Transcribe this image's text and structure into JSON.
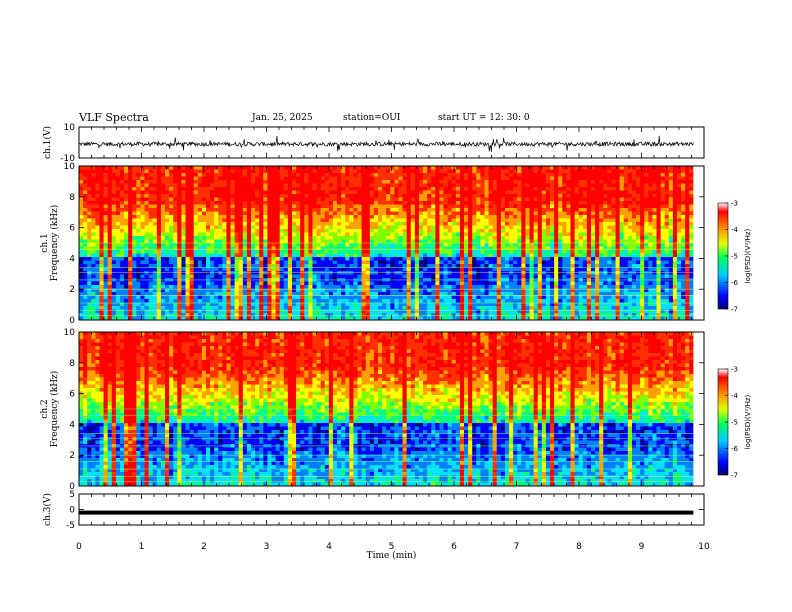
{
  "header": {
    "title": "VLF Spectra",
    "date": "Jan. 25, 2025",
    "station": "station=OUI",
    "start": "start  UT =   12: 30: 0"
  },
  "chart_data": [
    {
      "type": "line",
      "panel": "ch1-waveform",
      "ylabel": "ch.1(V)",
      "ylim": [
        -10,
        10
      ],
      "yticks": [
        "10",
        "-10"
      ],
      "xlim": [
        0,
        10
      ]
    },
    {
      "type": "heatmap",
      "panel": "ch1-spectrogram",
      "ylabel_line1": "ch.1",
      "ylabel_line2": "Frequency (kHz)",
      "ylim": [
        0,
        10
      ],
      "yticks": [
        "0",
        "2",
        "4",
        "6",
        "8",
        "10"
      ],
      "xlim": [
        0,
        10
      ],
      "colorbar": {
        "label": "log(PSD)(V²/Hz)",
        "range": [
          -7,
          -3
        ],
        "ticks": [
          "-3",
          "-4",
          "-5",
          "-6",
          "-7"
        ]
      }
    },
    {
      "type": "heatmap",
      "panel": "ch2-spectrogram",
      "ylabel_line1": "ch.2",
      "ylabel_line2": "Frequency (kHz)",
      "ylim": [
        0,
        10
      ],
      "yticks": [
        "0",
        "2",
        "4",
        "6",
        "8",
        "10"
      ],
      "xlim": [
        0,
        10
      ],
      "colorbar": {
        "label": "log(PSD)(V²/Hz)",
        "range": [
          -7,
          -3
        ],
        "ticks": [
          "-3",
          "-4",
          "-5",
          "-6",
          "-7"
        ]
      }
    },
    {
      "type": "line",
      "panel": "ch3-waveform",
      "ylabel": "ch.3(V)",
      "ylim": [
        -5,
        5
      ],
      "yticks": [
        "5",
        "0",
        "-5"
      ],
      "level": -1,
      "xlim": [
        0,
        10
      ]
    }
  ],
  "xaxis": {
    "label": "Time (min)",
    "ticks": [
      "0",
      "1",
      "2",
      "3",
      "4",
      "5",
      "6",
      "7",
      "8",
      "9",
      "10"
    ],
    "data_end": 9.83
  },
  "colors": {
    "scale": [
      "#00007a",
      "#0000ff",
      "#0080ff",
      "#00e0ff",
      "#00ff80",
      "#80ff00",
      "#ffff00",
      "#ffa000",
      "#ff3000",
      "#ff0000"
    ]
  }
}
